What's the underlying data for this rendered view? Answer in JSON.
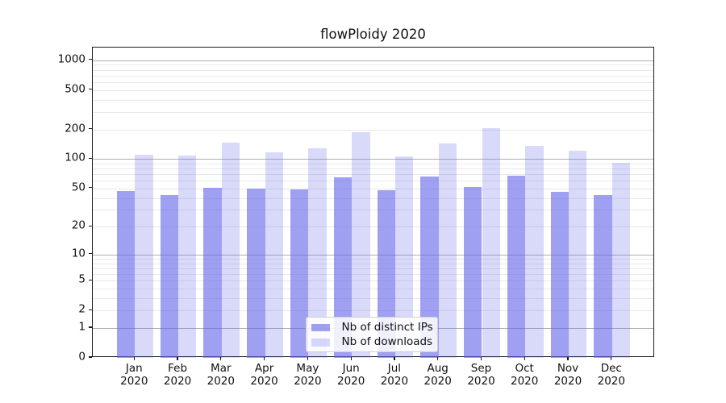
{
  "title": "flowPloidy 2020",
  "chart_data": {
    "type": "bar",
    "title": "flowPloidy 2020",
    "categories": [
      "Jan 2020",
      "Feb 2020",
      "Mar 2020",
      "Apr 2020",
      "May 2020",
      "Jun 2020",
      "Jul 2020",
      "Aug 2020",
      "Sep 2020",
      "Oct 2020",
      "Nov 2020",
      "Dec 2020"
    ],
    "series": [
      {
        "name": "Nb of distinct IPs",
        "color": "rgba(102,102,235,0.62)",
        "values": [
          47,
          43,
          51,
          50,
          49,
          65,
          48,
          66,
          52,
          68,
          46,
          43
        ]
      },
      {
        "name": "Nb of downloads",
        "color": "rgba(102,102,235,0.25)",
        "values": [
          110,
          108,
          148,
          117,
          129,
          188,
          106,
          143,
          205,
          135,
          121,
          92
        ]
      }
    ],
    "xlabel": "",
    "ylabel": "",
    "yscale": "log1p",
    "yticks": [
      0,
      1,
      2,
      5,
      10,
      20,
      50,
      100,
      200,
      500,
      1000
    ],
    "ylim": [
      0,
      1340
    ],
    "grid": "horizontal, major decades dark + log minors light",
    "legend_position": "lower center inside plot",
    "bar_colors": {
      "distinct_ips": "#a4a4f0",
      "downloads": "#d9d9f7"
    },
    "axis_color": "#1a1a1a",
    "major_grid_color": "#b0b0b0",
    "minor_grid_color": "#e8e8e8"
  }
}
